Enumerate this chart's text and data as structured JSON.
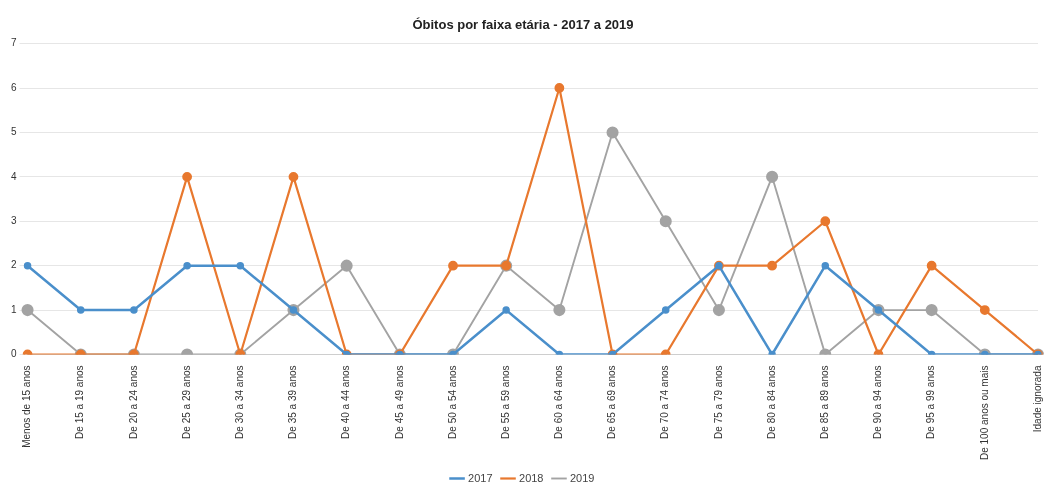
{
  "chart_data": {
    "type": "line",
    "title": "Óbitos por faixa etária - 2017 a 2019",
    "categories": [
      "Menos de 15 anos",
      "De 15 a 19 anos",
      "De 20 a 24 anos",
      "De 25 a 29 anos",
      "De 30 a 34 anos",
      "De 35 a 39 anos",
      "De 40 a 44 anos",
      "De 45 a 49 anos",
      "De 50 a 54 anos",
      "De 55 a 59 anos",
      "De 60 a 64 anos",
      "De 65 a 69 anos",
      "De 70 a 74 anos",
      "De 75 a 79 anos",
      "De 80 a 84 anos",
      "De 85 a 89 anos",
      "De 90 a 94 anos",
      "De 95 a 99 anos",
      "De 100 anos ou mais",
      "Idade ignorada"
    ],
    "series": [
      {
        "name": "2017",
        "color": "#4a8fcb",
        "values": [
          2,
          1,
          1,
          2,
          2,
          1,
          0,
          0,
          0,
          1,
          0,
          0,
          1,
          2,
          0,
          2,
          1,
          0,
          0,
          0
        ]
      },
      {
        "name": "2018",
        "color": "#e8782e",
        "values": [
          0,
          0,
          0,
          4,
          0,
          4,
          0,
          0,
          2,
          2,
          6,
          0,
          0,
          2,
          2,
          3,
          0,
          2,
          1,
          0
        ]
      },
      {
        "name": "2019",
        "color": "#a3a3a3",
        "values": [
          1,
          0,
          0,
          0,
          0,
          1,
          2,
          0,
          0,
          2,
          1,
          5,
          3,
          1,
          4,
          0,
          1,
          1,
          0,
          0
        ]
      }
    ],
    "ylim": [
      0,
      7
    ],
    "yticks": [
      0,
      1,
      2,
      3,
      4,
      5,
      6,
      7
    ],
    "grid": "y",
    "legend": "bottom",
    "marker": "circle",
    "line_style": "solid"
  }
}
